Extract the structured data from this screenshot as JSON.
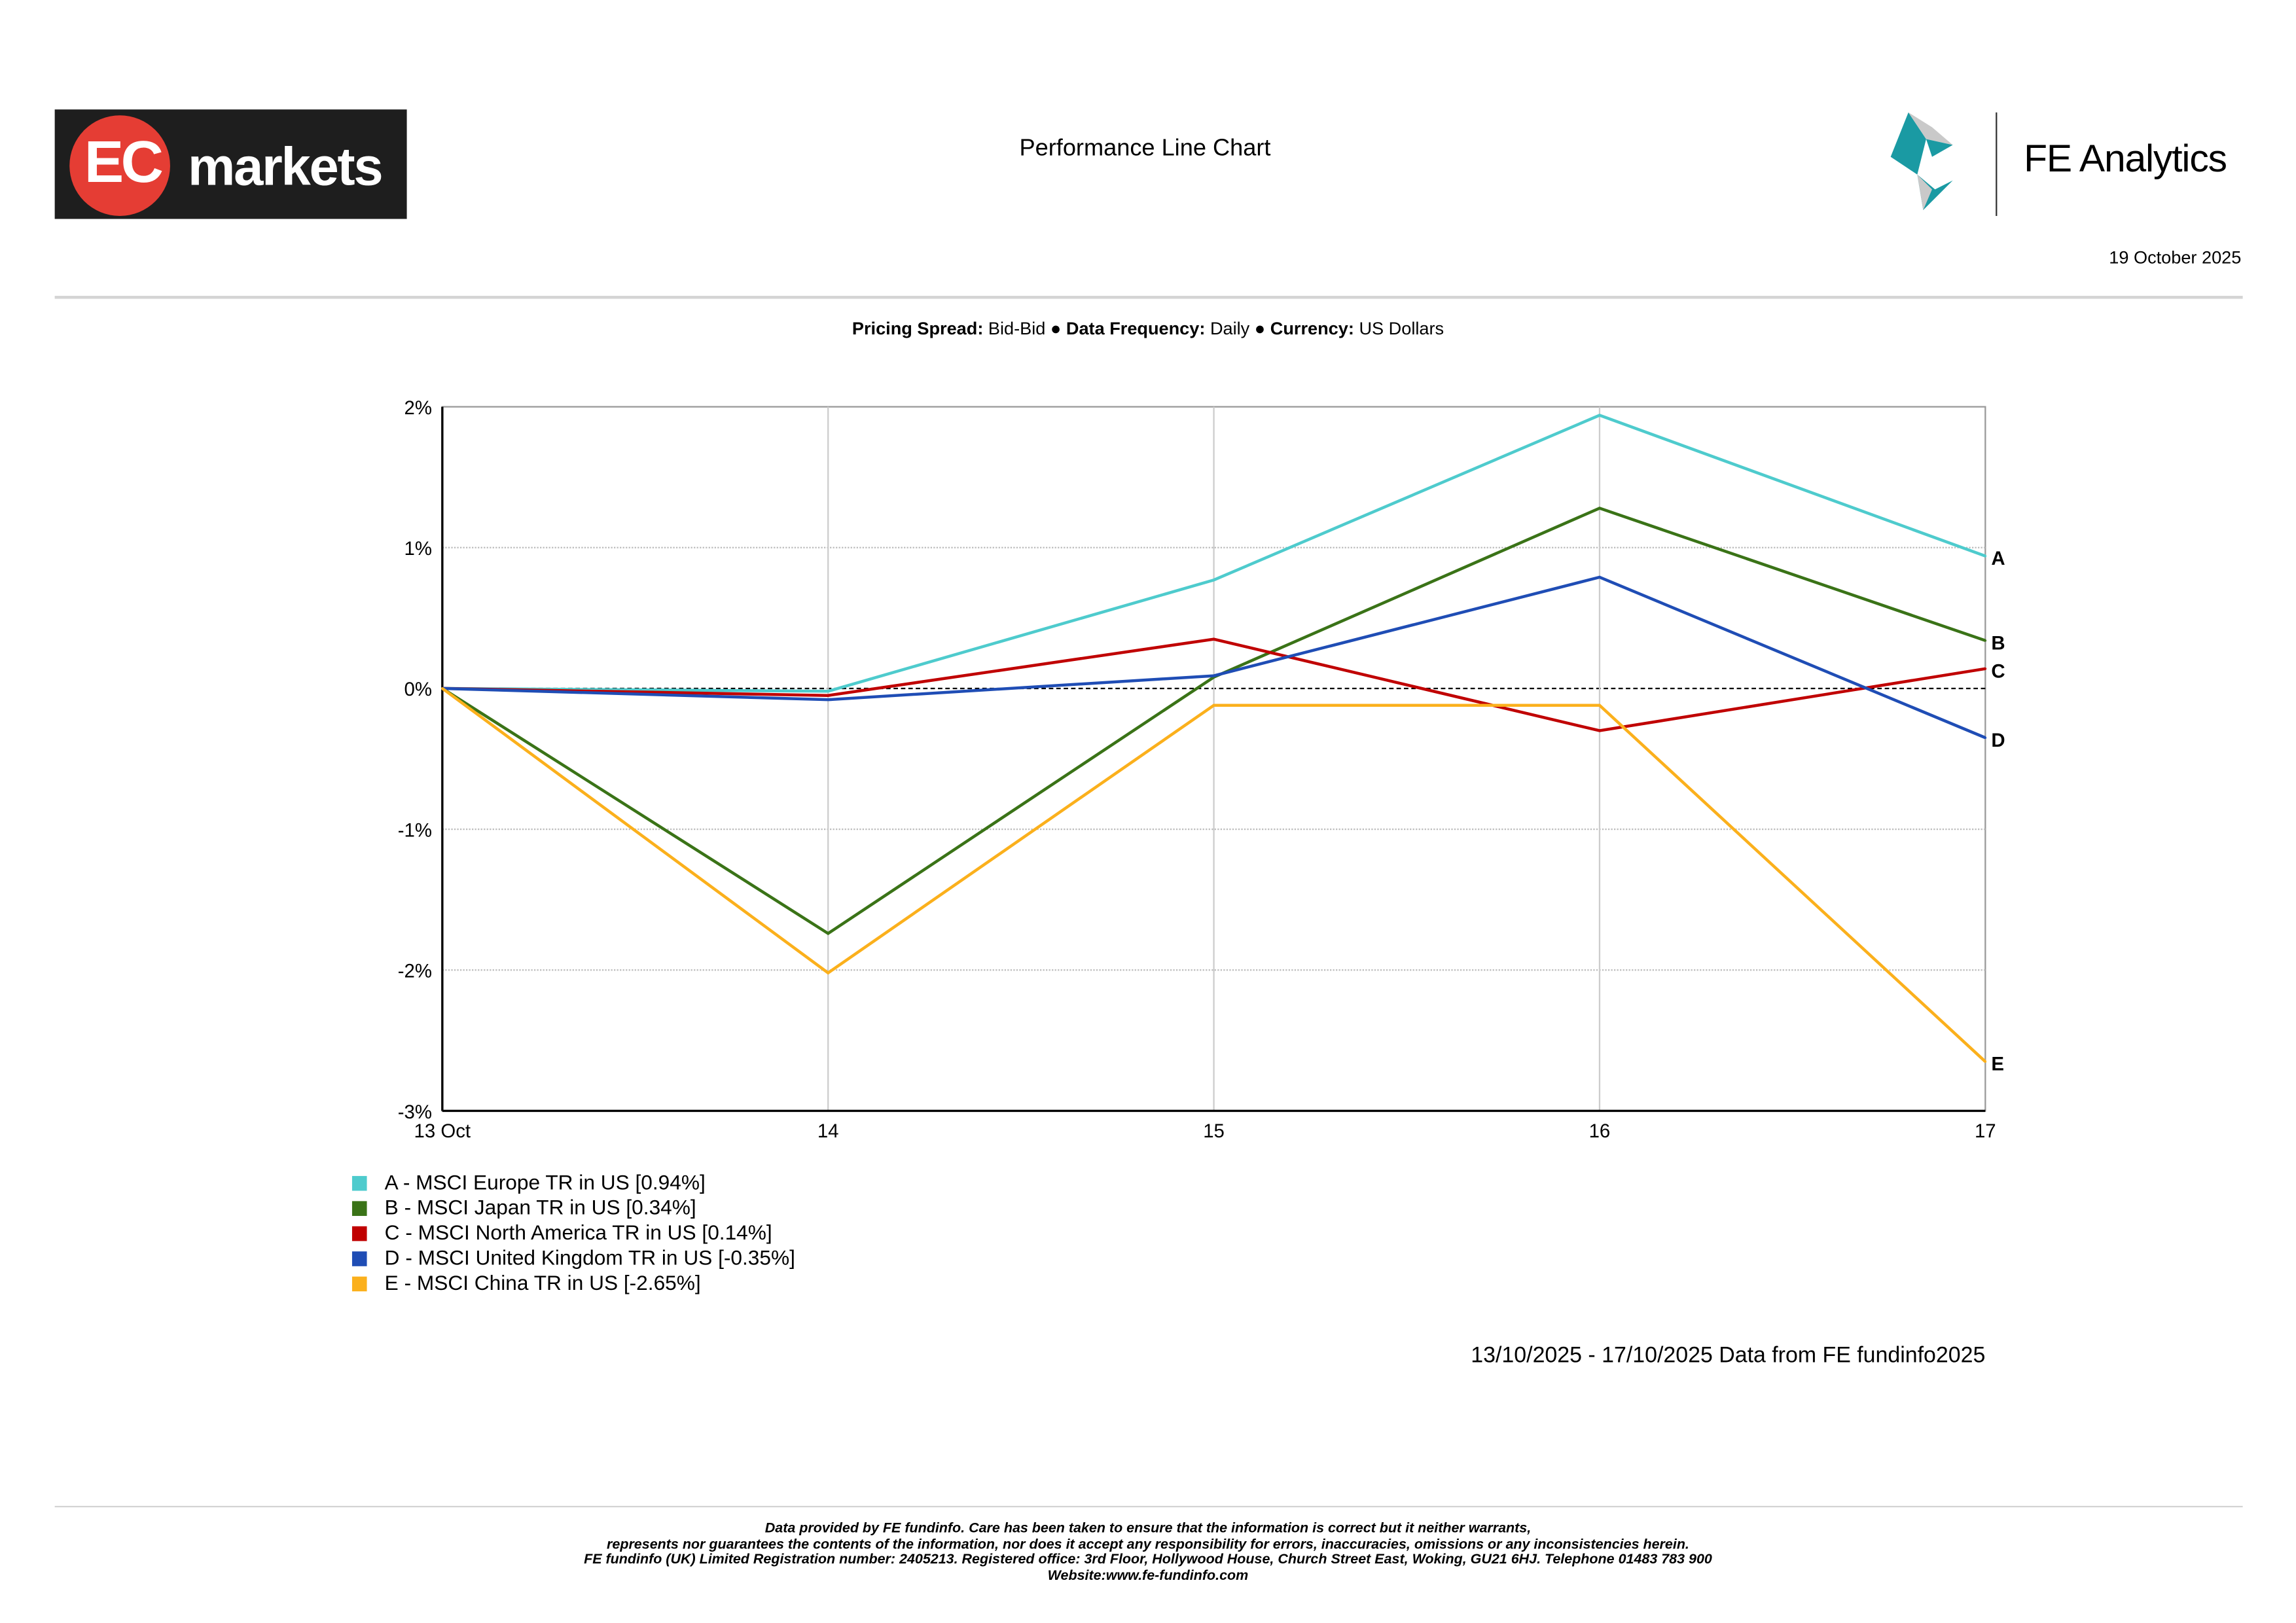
{
  "header": {
    "brand_left": "EC markets",
    "brand_left_parts": {
      "ec": "EC",
      "markets": "markets"
    },
    "title": "Performance Line Chart",
    "brand_right": "FE Analytics",
    "date": "19 October 2025"
  },
  "spec": {
    "pricing_label": "Pricing Spread:",
    "pricing_value": "Bid-Bid",
    "freq_label": "Data Frequency:",
    "freq_value": "Daily",
    "currency_label": "Currency:",
    "currency_value": "US Dollars",
    "bullet": "●"
  },
  "chart_data": {
    "type": "line",
    "title": "Performance Line Chart",
    "x": [
      "13 Oct",
      "14",
      "15",
      "16",
      "17"
    ],
    "ylim": [
      -3,
      2
    ],
    "yticks": [
      2,
      1,
      0,
      -1,
      -2,
      -3
    ],
    "ytick_labels": [
      "2%",
      "1%",
      "0%",
      "-1%",
      "-2%",
      "-3%"
    ],
    "grid": true,
    "series": [
      {
        "letter": "A",
        "name": "A - MSCI Europe TR in US [0.94%]",
        "color": "#4ecbcd",
        "values": [
          0,
          -0.02,
          0.77,
          1.94,
          0.94
        ]
      },
      {
        "letter": "B",
        "name": "B - MSCI Japan TR in US [0.34%]",
        "color": "#3a7317",
        "values": [
          0,
          -1.74,
          0.08,
          1.28,
          0.34
        ]
      },
      {
        "letter": "C",
        "name": "C - MSCI North America TR in US [0.14%]",
        "color": "#c00000",
        "values": [
          0,
          -0.05,
          0.35,
          -0.3,
          0.14
        ]
      },
      {
        "letter": "D",
        "name": "D - MSCI United Kingdom TR in US [-0.35%]",
        "color": "#1f4db5",
        "values": [
          0,
          -0.08,
          0.09,
          0.79,
          -0.35
        ]
      },
      {
        "letter": "E",
        "name": "E - MSCI China TR in US [-2.65%]",
        "color": "#fbb01c",
        "values": [
          0,
          -2.02,
          -0.12,
          -0.12,
          -2.65
        ]
      }
    ],
    "legend_position": "bottom-left"
  },
  "range_note": "13/10/2025 - 17/10/2025 Data from FE fundinfo2025",
  "footer": [
    "Data provided by FE fundinfo. Care has been taken to ensure that the information is correct but it neither warrants,",
    "represents nor guarantees the contents of the information, nor does it accept any responsibility for errors, inaccuracies, omissions or any inconsistencies herein.",
    "FE fundinfo (UK) Limited Registration number: 2405213. Registered office: 3rd Floor, Hollywood House, Church Street East, Woking, GU21 6HJ. Telephone 01483 783 900",
    "Website:www.fe-fundinfo.com"
  ]
}
